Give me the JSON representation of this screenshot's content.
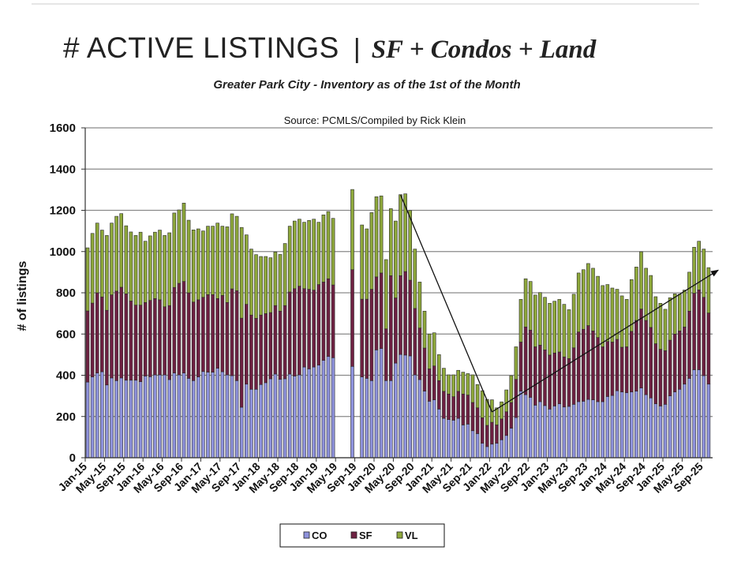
{
  "header": {
    "title_main": "# ACTIVE LISTINGS",
    "title_sep": "|",
    "title_sub": "SF + Condos + Land",
    "subtitle": "Greater Park City - Inventory as of the 1st of the Month"
  },
  "chart_data": {
    "type": "bar",
    "stacked": true,
    "title": "Source: PCMLS/Compiled by Rick Klein",
    "xlabel": "",
    "ylabel": "# of listings",
    "ylim": [
      0,
      1600
    ],
    "yticks": [
      0,
      200,
      400,
      600,
      800,
      1000,
      1200,
      1400,
      1600
    ],
    "grid": true,
    "legend_position": "bottom",
    "colors": {
      "CO": "#8e92dc",
      "SF": "#6e2142",
      "VL": "#8ea83b"
    },
    "first_month": "Jan-15",
    "x_tick_labels": [
      "Jan-15",
      "May-15",
      "Sep-15",
      "Jan-16",
      "May-16",
      "Sep-16",
      "Jan-17",
      "May-17",
      "Sep-17",
      "Jan-18",
      "May-18",
      "Sep-18",
      "Jan-19",
      "May-19",
      "Sep-19",
      "Jan-20",
      "May-20",
      "Sep-20",
      "Jan-21",
      "May-21",
      "Sep-21",
      "Jan-22",
      "May-22",
      "Sep-22",
      "Jan-23",
      "May-23",
      "Sep-23",
      "Jan-24",
      "May-24",
      "Sep-24",
      "Jan-25",
      "May-25",
      "Sep-25"
    ],
    "series": [
      {
        "name": "CO",
        "values": [
          367,
          392,
          411,
          417,
          353,
          387,
          374,
          387,
          376,
          376,
          376,
          369,
          396,
          393,
          402,
          402,
          402,
          379,
          411,
          402,
          411,
          385,
          374,
          392,
          418,
          415,
          415,
          434,
          417,
          402,
          398,
          374,
          245,
          357,
          332,
          332,
          355,
          364,
          383,
          406,
          380,
          383,
          406,
          396,
          402,
          440,
          431,
          440,
          449,
          472,
          491,
          485,
          null,
          null,
          null,
          443,
          null,
          392,
          385,
          374,
          523,
          530,
          374,
          374,
          459,
          501,
          498,
          494,
          402,
          379,
          323,
          274,
          281,
          236,
          191,
          185,
          182,
          191,
          159,
          163,
          131,
          117,
          70,
          54,
          66,
          70,
          87,
          108,
          143,
          195,
          323,
          306,
          293,
          255,
          272,
          253,
          236,
          251,
          262,
          246,
          249,
          259,
          272,
          274,
          283,
          281,
          272,
          272,
          297,
          302,
          325,
          319,
          315,
          319,
          323,
          338,
          306,
          290,
          262,
          251,
          259,
          300,
          319,
          332,
          357,
          385,
          427,
          427,
          398,
          357
        ]
      },
      {
        "name": "SF",
        "values": [
          345,
          358,
          389,
          363,
          362,
          403,
          434,
          440,
          419,
          384,
          364,
          371,
          357,
          370,
          370,
          364,
          330,
          359,
          415,
          444,
          444,
          415,
          381,
          374,
          360,
          376,
          376,
          338,
          370,
          351,
          421,
          436,
          432,
          387,
          360,
          344,
          337,
          335,
          321,
          332,
          331,
          355,
          398,
          424,
          430,
          380,
          386,
          373,
          391,
          380,
          377,
          353,
          null,
          null,
          null,
          469,
          null,
          377,
          384,
          443,
          354,
          366,
          251,
          509,
          316,
          382,
          405,
          367,
          322,
          250,
          209,
          157,
          164,
          138,
          131,
          124,
          114,
          131,
          150,
          141,
          137,
          125,
          124,
          103,
          106,
          89,
          101,
          115,
          125,
          185,
          238,
          328,
          326,
          283,
          274,
          270,
          262,
          257,
          251,
          243,
          232,
          274,
          338,
          349,
          358,
          334,
          311,
          266,
          267,
          259,
          249,
          217,
          223,
          294,
          343,
          383,
          360,
          342,
          291,
          275,
          260,
          270,
          281,
          283,
          277,
          326,
          371,
          387,
          380,
          345
        ]
      },
      {
        "name": "VL",
        "values": [
          306,
          338,
          338,
          324,
          363,
          348,
          363,
          357,
          330,
          335,
          338,
          354,
          297,
          313,
          322,
          338,
          346,
          353,
          361,
          356,
          380,
          352,
          350,
          344,
          322,
          332,
          332,
          366,
          336,
          367,
          364,
          361,
          440,
          337,
          320,
          309,
          284,
          277,
          266,
          260,
          275,
          301,
          319,
          328,
          325,
          322,
          334,
          344,
          302,
          326,
          326,
          323,
          null,
          null,
          null,
          389,
          null,
          360,
          341,
          372,
          389,
          374,
          336,
          325,
          373,
          393,
          377,
          338,
          288,
          223,
          179,
          169,
          161,
          126,
          112,
          93,
          106,
          102,
          106,
          104,
          134,
          113,
          131,
          126,
          109,
          83,
          83,
          106,
          130,
          158,
          207,
          234,
          236,
          251,
          255,
          255,
          251,
          251,
          255,
          255,
          237,
          260,
          286,
          289,
          301,
          304,
          297,
          297,
          276,
          262,
          243,
          249,
          230,
          251,
          259,
          278,
          253,
          252,
          228,
          223,
          201,
          206,
          195,
          178,
          179,
          189,
          223,
          236,
          234,
          220
        ]
      }
    ],
    "annotations": [
      {
        "type": "line",
        "from": [
          "Jun-20",
          1275
        ],
        "to": [
          "Jan-22",
          222
        ]
      },
      {
        "type": "arrow",
        "from": [
          "Jan-22",
          222
        ],
        "to": [
          "Dec-25",
          910
        ]
      }
    ]
  }
}
